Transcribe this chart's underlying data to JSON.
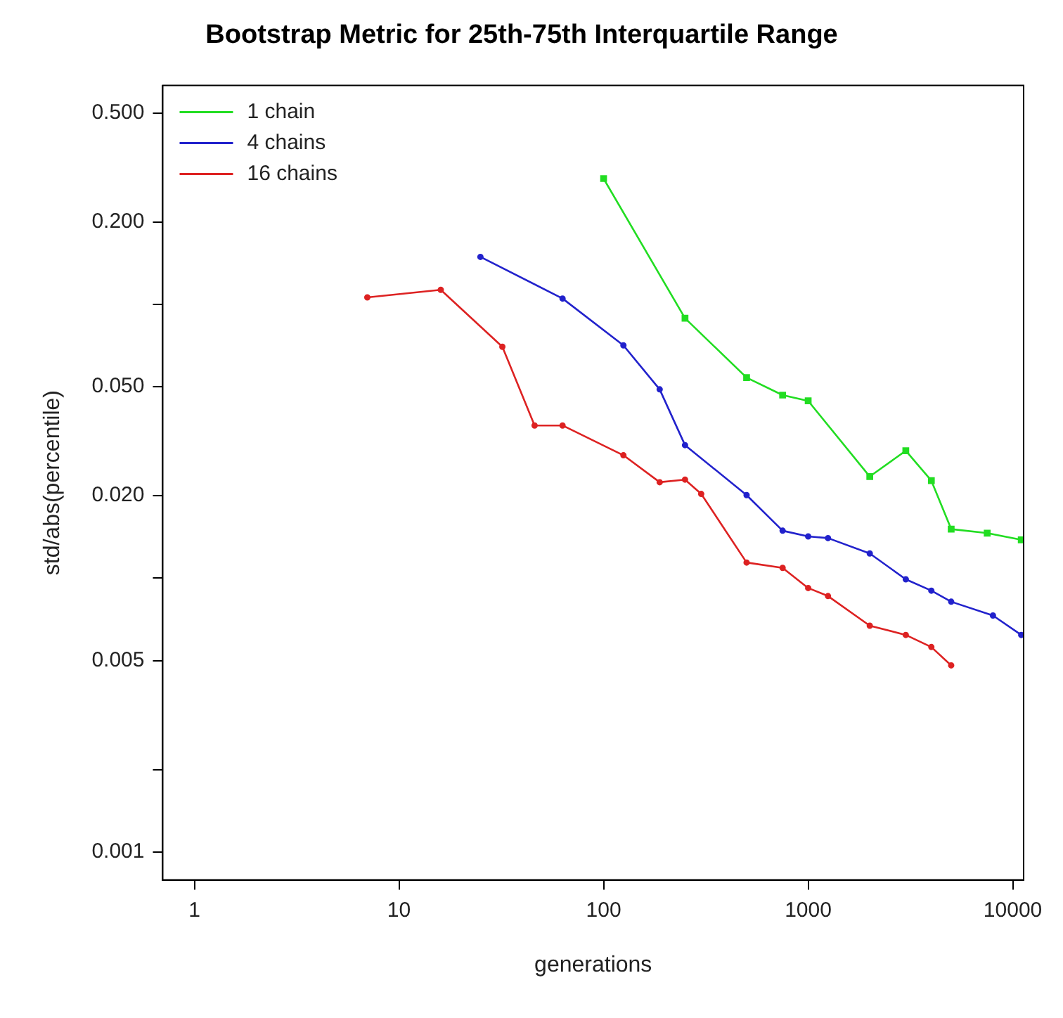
{
  "chart_data": {
    "type": "line",
    "title": "Bootstrap Metric for 25th-75th Interquartile Range",
    "xlabel": "generations",
    "ylabel": "std/abs(percentile)",
    "log": "xy",
    "grid": false,
    "legend": "top left",
    "xlim": [
      0.72,
      11300
    ],
    "ylim": [
      0.00079,
      0.63
    ],
    "xticks": [
      1,
      10,
      100,
      1000,
      10000
    ],
    "yticks": [
      {
        "value": 0.5,
        "label": "0.500"
      },
      {
        "value": 0.2,
        "label": "0.200"
      },
      {
        "value": 0.1,
        "label": null
      },
      {
        "value": 0.05,
        "label": "0.050"
      },
      {
        "value": 0.02,
        "label": "0.020"
      },
      {
        "value": 0.01,
        "label": null
      },
      {
        "value": 0.005,
        "label": "0.005"
      },
      {
        "value": 0.002,
        "label": null
      },
      {
        "value": 0.001,
        "label": "0.001"
      }
    ],
    "series": [
      {
        "name": "1 chain",
        "color": "#22dd22",
        "marker": "square",
        "x": [
          100,
          250,
          500,
          750,
          1000,
          2000,
          3000,
          4000,
          5000,
          7500,
          11000
        ],
        "values": [
          0.288,
          0.089,
          0.054,
          0.0466,
          0.0444,
          0.0235,
          0.0292,
          0.0227,
          0.0151,
          0.0146,
          0.0138
        ]
      },
      {
        "name": "4 chains",
        "color": "#2222cc",
        "marker": "circle",
        "x": [
          25,
          63,
          125,
          188,
          250,
          500,
          750,
          1000,
          1250,
          2000,
          3000,
          4000,
          5000,
          8000,
          11000
        ],
        "values": [
          0.149,
          0.105,
          0.0708,
          0.0489,
          0.0306,
          0.0201,
          0.0149,
          0.0142,
          0.014,
          0.0123,
          0.0099,
          0.009,
          0.0082,
          0.0073,
          0.0062
        ]
      },
      {
        "name": "16 chains",
        "color": "#dd2222",
        "marker": "circle",
        "x": [
          7,
          16,
          32,
          46,
          63,
          125,
          188,
          250,
          300,
          500,
          750,
          1000,
          1250,
          2000,
          3000,
          4000,
          5000
        ],
        "values": [
          0.106,
          0.113,
          0.07,
          0.0361,
          0.0361,
          0.0281,
          0.0224,
          0.0229,
          0.0203,
          0.0114,
          0.0109,
          0.0092,
          0.0086,
          0.0067,
          0.0062,
          0.0056,
          0.0048
        ]
      }
    ]
  }
}
